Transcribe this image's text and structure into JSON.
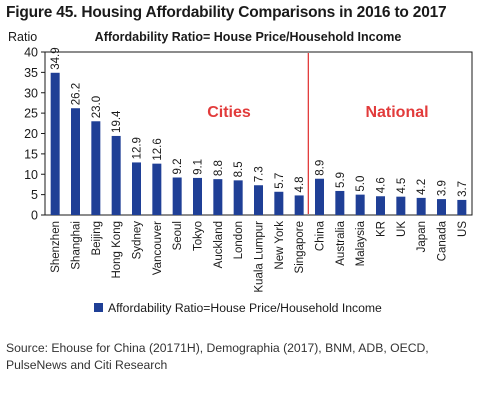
{
  "figure_title": "Figure 45. Housing Affordability Comparisons in 2016 to 2017",
  "source_note": "Source: Ehouse for China (20171H), Demographia (2017), BNM, ADB, OECD, PulseNews and Citi Research",
  "colors": {
    "bar": "#1f3f96",
    "divider": "#e23b3b",
    "section_label": "#e23b3b",
    "text": "#1a1a1a"
  },
  "chart_data": {
    "type": "bar",
    "title": "Affordability Ratio= House Price/Household Income",
    "ylabel": "Ratio",
    "xlabel": "",
    "ylim": [
      0,
      40
    ],
    "yticks": [
      0,
      5,
      10,
      15,
      20,
      25,
      30,
      35,
      40
    ],
    "grid": false,
    "legend_position": "bottom",
    "categories": [
      "Shenzhen",
      "Shanghai",
      "Beijing",
      "Hong Kong",
      "Sydney",
      "Vancouver",
      "Seoul",
      "Tokyo",
      "Auckland",
      "London",
      "Kuala Lumpur",
      "New York",
      "Singapore",
      "China",
      "Australia",
      "Malaysia",
      "KR",
      "UK",
      "Japan",
      "Canada",
      "US"
    ],
    "series": [
      {
        "name": "Affordability Ratio=House Price/Household Income",
        "values": [
          34.9,
          26.2,
          23.0,
          19.4,
          12.9,
          12.6,
          9.2,
          9.1,
          8.8,
          8.5,
          7.3,
          5.7,
          4.8,
          8.9,
          5.9,
          5.0,
          4.6,
          4.5,
          4.2,
          3.9,
          3.7
        ]
      }
    ],
    "data_labels": [
      "34.9",
      "26.2",
      "23.0",
      "19.4",
      "12.9",
      "12.6",
      "9.2",
      "9.1",
      "8.8",
      "8.5",
      "7.3",
      "5.7",
      "4.8",
      "8.9",
      "5.9",
      "5.0",
      "4.6",
      "4.5",
      "4.2",
      "3.9",
      "3.7"
    ],
    "annotations": [
      {
        "text": "Cities",
        "applies_to": "Shenzhen–Singapore"
      },
      {
        "text": "National",
        "applies_to": "China–US"
      }
    ],
    "divider_between": [
      "Singapore",
      "China"
    ]
  }
}
